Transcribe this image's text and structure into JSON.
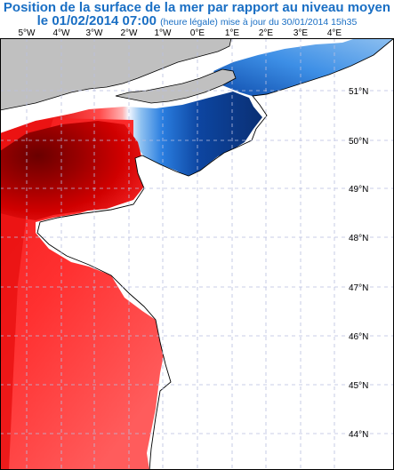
{
  "title": {
    "line1": "Position de la surface de la mer par rapport au niveau moyen",
    "date": "le 01/02/2014 07:00",
    "note": "(heure légale) mise à jour du 30/01/2014 15h35"
  },
  "axes": {
    "lon_labels": [
      "5°W",
      "4°W",
      "3°W",
      "2°W",
      "1°W",
      "0°E",
      "1°E",
      "2°E",
      "3°E",
      "4°E"
    ],
    "lat_labels": [
      "51°N",
      "50°N",
      "49°N",
      "48°N",
      "47°N",
      "46°N",
      "45°N",
      "44°N"
    ]
  },
  "colors": {
    "land": "#c0c0c0",
    "grid": "#b9bfe0",
    "title": "#1a6fc4",
    "negative_dark": "#0a2f73",
    "negative_mid": "#1c6ed9",
    "negative_light": "#9cc8f2",
    "positive_light": "#ff5a5a",
    "positive_mid": "#e00000",
    "positive_dark": "#6a0000"
  }
}
